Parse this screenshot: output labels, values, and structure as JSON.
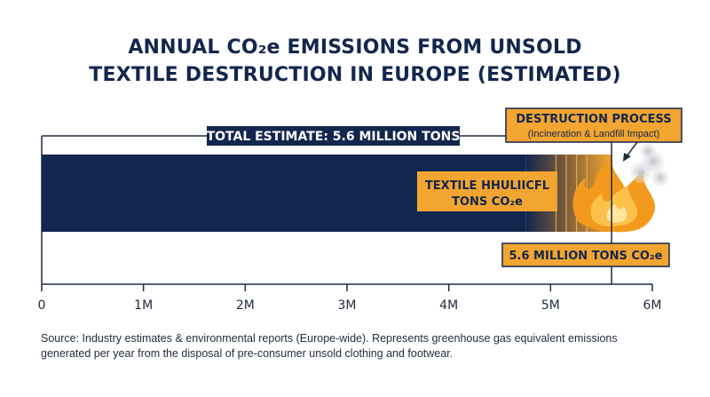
{
  "title": {
    "line1": "ANNUAL CO₂e EMISSIONS FROM UNSOLD",
    "line2": "TEXTILE DESTRUCTION IN EUROPE (ESTIMATED)"
  },
  "colors": {
    "navy": "#13264d",
    "orange": "#f2a530",
    "flame": "#f39a1e",
    "axis": "#1f2a3d"
  },
  "annotations": {
    "total_label": "TOTAL ESTIMATE: 5.6 MILLION TONS",
    "process_title": "DESTRUCTION PROCESS",
    "process_subtitle": "(Incineration & Landfill Impact)",
    "bar_label_line1": "TEXTILE HHULIICFL",
    "bar_label_line2": "TONS CO₂e",
    "value_label": "5.6 MILLION TONS CO₂e"
  },
  "chart_data": {
    "type": "bar",
    "orientation": "horizontal",
    "categories": [
      ""
    ],
    "values": [
      5.6
    ],
    "unit": "million tons CO₂e",
    "xlim": [
      0,
      6
    ],
    "xticks": [
      0,
      1,
      2,
      3,
      4,
      5,
      6
    ],
    "xtick_labels": [
      "0",
      "1M",
      "2M",
      "3M",
      "4M",
      "5M",
      "6M"
    ],
    "grid": false,
    "marker_value": 5.6
  },
  "source": {
    "line1": "Source: Industry estimates & environmental reports (Europe-wide). Represents greenhouse gas equivalent emissions",
    "line2": "generated per year from the disposal of pre-consumer unsold clothing and footwear."
  }
}
